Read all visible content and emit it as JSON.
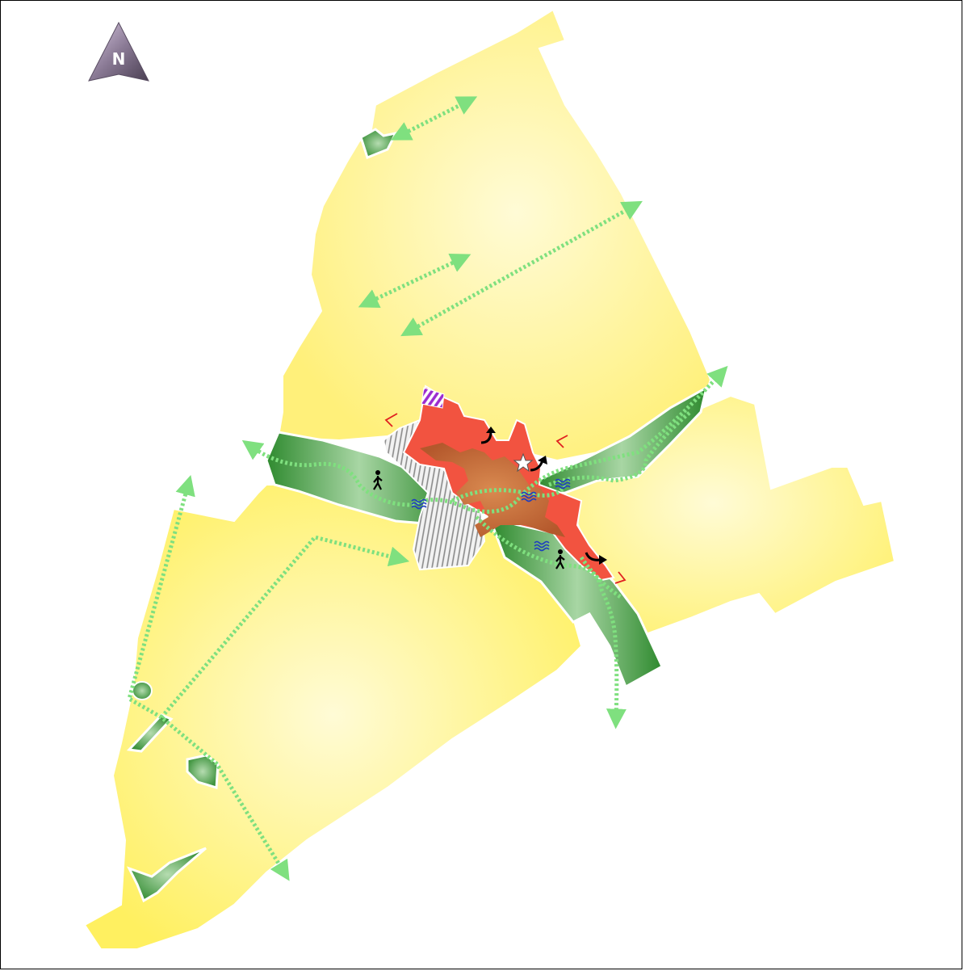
{
  "map": {
    "north_arrow": {
      "letter": "N",
      "icon": "north-arrow-icon"
    },
    "colors": {
      "built_area": "#fff27a",
      "built_area_light": "#fffbd6",
      "green_space": "#3f973f",
      "green_space_light": "#9bcf98",
      "centre_zone": "#f25340",
      "centre_core": "#c96a37",
      "hatched_zone": "#cfcfcf",
      "path": "#7fe07f",
      "water_symbol": "#1f3fbf",
      "view_marker": "#e02020",
      "special_zone": "#9b2bcf"
    },
    "symbols": {
      "walker": "pedestrian-icon",
      "water": "water-waves-icon",
      "landmark": "star-icon",
      "direction": "curved-arrow-icon",
      "view": "viewpoint-marker-icon"
    }
  }
}
